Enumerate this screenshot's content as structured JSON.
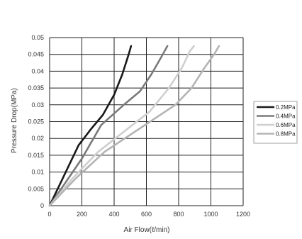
{
  "chart_data": {
    "type": "line",
    "title": "",
    "xlabel": "Air Flow(ℓ/min)",
    "ylabel": "Pressure Drop(MPa)",
    "xlim": [
      0,
      1200
    ],
    "ylim": [
      0,
      0.05
    ],
    "x_ticks": [
      0,
      200,
      400,
      600,
      800,
      1000,
      1200
    ],
    "y_ticks": [
      0,
      0.005,
      0.01,
      0.015,
      0.02,
      0.025,
      0.03,
      0.035,
      0.04,
      0.045,
      0.05
    ],
    "x_tick_labels": [
      "0",
      "200",
      "400",
      "600",
      "800",
      "1000",
      "1200"
    ],
    "y_tick_labels": [
      "0",
      "0.005",
      "0.01",
      "0.015",
      "0.02",
      "0.025",
      "0.03",
      "0.035",
      "0.04",
      "0.045",
      "0.05"
    ],
    "grid": true,
    "legend_position": "right",
    "series": [
      {
        "name": "0.2MPa",
        "color": "#1a1a1a",
        "points": [
          [
            0,
            0
          ],
          [
            80,
            0.008
          ],
          [
            180,
            0.018
          ],
          [
            260,
            0.023
          ],
          [
            330,
            0.027
          ],
          [
            400,
            0.033
          ],
          [
            450,
            0.039
          ],
          [
            490,
            0.045
          ],
          [
            505,
            0.0475
          ]
        ]
      },
      {
        "name": "0.4MPa",
        "color": "#7a7a7a",
        "points": [
          [
            0,
            0
          ],
          [
            100,
            0.007
          ],
          [
            200,
            0.014
          ],
          [
            320,
            0.024
          ],
          [
            460,
            0.03
          ],
          [
            560,
            0.034
          ],
          [
            630,
            0.039
          ],
          [
            690,
            0.044
          ],
          [
            730,
            0.0475
          ]
        ]
      },
      {
        "name": "0.6MPa",
        "color": "#cfcfcf",
        "points": [
          [
            0,
            0
          ],
          [
            140,
            0.008
          ],
          [
            300,
            0.016
          ],
          [
            460,
            0.022
          ],
          [
            620,
            0.028
          ],
          [
            740,
            0.035
          ],
          [
            820,
            0.041
          ],
          [
            870,
            0.046
          ],
          [
            895,
            0.0475
          ]
        ]
      },
      {
        "name": "0.8MPa",
        "color": "#b4b4b4",
        "points": [
          [
            0,
            0
          ],
          [
            160,
            0.008
          ],
          [
            340,
            0.016
          ],
          [
            560,
            0.023
          ],
          [
            780,
            0.03
          ],
          [
            880,
            0.035
          ],
          [
            960,
            0.041
          ],
          [
            1020,
            0.045
          ],
          [
            1050,
            0.0475
          ]
        ]
      }
    ]
  }
}
